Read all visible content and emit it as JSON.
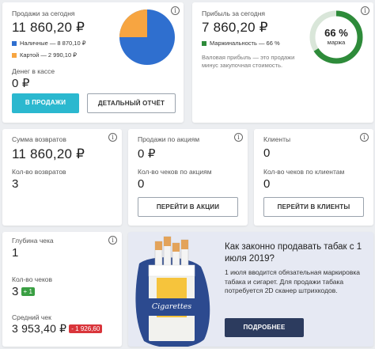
{
  "colors": {
    "accent": "#2bb8cf",
    "pie_cash": "#2f6fcf",
    "pie_card": "#f7a541",
    "margin_ring": "#2e8b3a",
    "margin_track": "#d9e6d9",
    "badge_green": "#3a9f43",
    "badge_red": "#d9353b",
    "promo_bg": "#e6e9f3",
    "promo_button": "#2c3b5e"
  },
  "sales_today": {
    "title": "Продажи за сегодня",
    "amount": "11 860,20 ₽",
    "legend": [
      {
        "label": "Наличные — 8 870,10 ₽",
        "color": "#2f6fcf",
        "value": 8870.1
      },
      {
        "label": "Картой — 2 990,10 ₽",
        "color": "#f7a541",
        "value": 2990.1
      }
    ],
    "cash_label": "Денег в кассе",
    "cash_value": "0 ₽",
    "btn_sales": "В ПРОДАЖИ",
    "btn_report": "ДЕТАЛЬНЫЙ ОТЧЁТ",
    "info_icon": "i"
  },
  "profit_today": {
    "title": "Прибыль за сегодня",
    "amount": "7 860,20 ₽",
    "legend": "Маржинальность — 66 %",
    "note": "Валовая прибыль — это продажи минус закупочная стоимость.",
    "ring_value": "66 %",
    "ring_caption": "маржа",
    "ring_fraction": 0.66,
    "info_icon": "i"
  },
  "returns": {
    "title": "Сумма возвратов",
    "amount": "11 860,20 ₽",
    "count_label": "Кол-во возвратов",
    "count_value": "3",
    "info_icon": "i"
  },
  "promo_sales": {
    "title": "Продажи по акциям",
    "amount": "0 ₽",
    "count_label": "Кол-во чеков по акциям",
    "count_value": "0",
    "button": "ПЕРЕЙТИ В АКЦИИ",
    "info_icon": "i"
  },
  "clients": {
    "title": "Клиенты",
    "amount": "0",
    "count_label": "Кол-во чеков по клиентам",
    "count_value": "0",
    "button": "ПЕРЕЙТИ В КЛИЕНТЫ",
    "info_icon": "i"
  },
  "receipts": {
    "depth_label": "Глубина чека",
    "depth_value": "1",
    "count_label": "Кол-во чеков",
    "count_value": "3",
    "count_badge": "+ 1",
    "avg_label": "Средний чек",
    "avg_value": "3 953,40 ₽",
    "avg_badge": "- 1 926,60",
    "info_icon": "i"
  },
  "tobacco_promo": {
    "heading": "Как законно продавать табак с 1 июля 2019?",
    "body": "1 июля вводится обязательная маркировка табака и сигарет. Для продажи табака потребуется 2D сканер штрихкодов.",
    "button": "ПОДРОБНЕЕ",
    "pack_label": "Cigarettes"
  }
}
